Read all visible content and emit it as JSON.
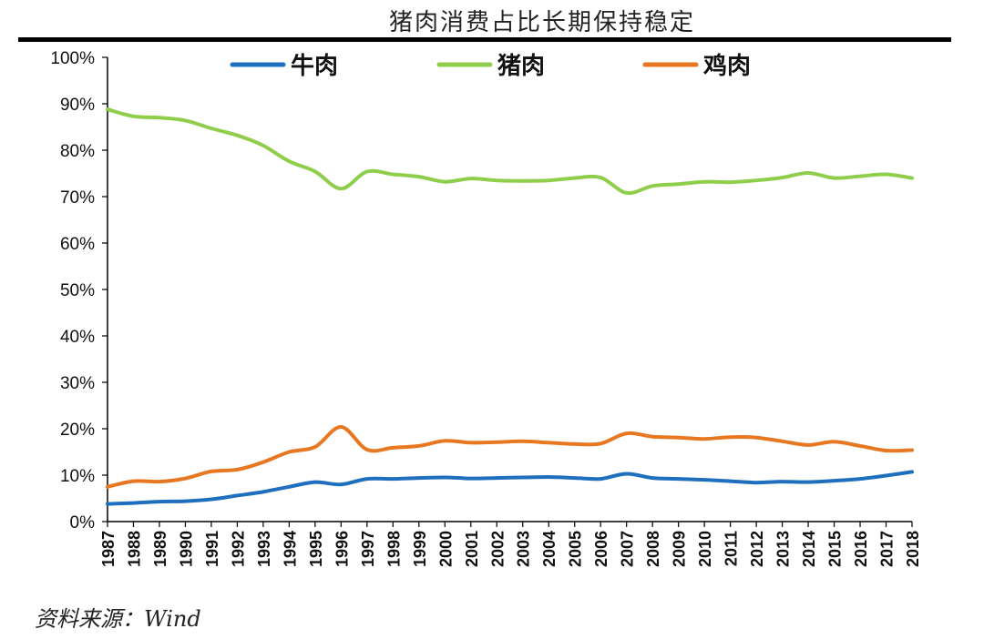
{
  "chart_data": {
    "type": "line",
    "title": "猪肉消费占比长期保持稳定",
    "xlabel": "",
    "ylabel": "",
    "x": [
      "1987",
      "1988",
      "1989",
      "1990",
      "1991",
      "1992",
      "1993",
      "1994",
      "1995",
      "1996",
      "1997",
      "1998",
      "1999",
      "2000",
      "2001",
      "2002",
      "2003",
      "2004",
      "2005",
      "2006",
      "2007",
      "2008",
      "2009",
      "2010",
      "2011",
      "2012",
      "2013",
      "2014",
      "2015",
      "2016",
      "2017",
      "2018"
    ],
    "ylim": [
      0,
      100
    ],
    "yticks": [
      "0%",
      "10%",
      "20%",
      "30%",
      "40%",
      "50%",
      "60%",
      "70%",
      "80%",
      "90%",
      "100%"
    ],
    "grid": false,
    "legend_position": "top",
    "series": [
      {
        "name": "牛肉",
        "color": "#1f6fbf",
        "values": [
          3.8,
          4.0,
          4.3,
          4.4,
          4.8,
          5.6,
          6.4,
          7.5,
          8.5,
          8.0,
          9.2,
          9.2,
          9.4,
          9.5,
          9.3,
          9.4,
          9.5,
          9.6,
          9.4,
          9.2,
          10.3,
          9.4,
          9.2,
          9.0,
          8.7,
          8.4,
          8.6,
          8.5,
          8.8,
          9.2,
          9.9,
          10.7
        ]
      },
      {
        "name": "猪肉",
        "color": "#8fce4b",
        "values": [
          88.8,
          87.3,
          87.0,
          86.4,
          84.7,
          83.2,
          81.0,
          77.6,
          75.4,
          71.7,
          75.4,
          74.8,
          74.3,
          73.2,
          73.9,
          73.5,
          73.4,
          73.5,
          74.0,
          74.1,
          70.8,
          72.3,
          72.7,
          73.2,
          73.1,
          73.5,
          74.1,
          75.1,
          74.0,
          74.4,
          74.8,
          74.0
        ]
      },
      {
        "name": "鸡肉",
        "color": "#e87722",
        "values": [
          7.5,
          8.7,
          8.6,
          9.3,
          10.8,
          11.2,
          12.8,
          15.0,
          16.1,
          20.4,
          15.5,
          15.9,
          16.3,
          17.4,
          17.0,
          17.1,
          17.3,
          17.0,
          16.7,
          16.8,
          19.0,
          18.3,
          18.1,
          17.8,
          18.2,
          18.1,
          17.3,
          16.5,
          17.2,
          16.3,
          15.3,
          15.4
        ]
      }
    ]
  },
  "source": "资料来源：Wind"
}
